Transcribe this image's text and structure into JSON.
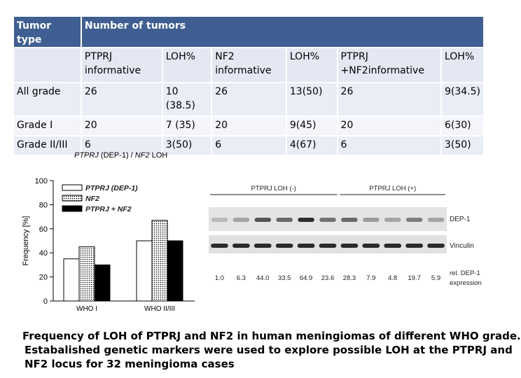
{
  "table": {
    "header": [
      "Tumor type",
      "Number of tumors"
    ],
    "subheaders": [
      "",
      "PTPRJ informative",
      "LOH%",
      "NF2 informative",
      "LOH%",
      "PTPRJ +NF2informative",
      "LOH%"
    ],
    "rows": [
      [
        "All grade",
        "26",
        "10 (38.5)",
        "26",
        "13(50)",
        "26",
        "9(34.5)"
      ],
      [
        "Grade I",
        "20",
        "7 (35)",
        "20",
        "9(45)",
        "20",
        "6(30)"
      ],
      [
        "Grade II/III",
        "6",
        "3(50)",
        "6",
        "4(67)",
        "6",
        "3(50)"
      ]
    ]
  },
  "panel_caption": {
    "gene1": "PTPRJ",
    "mid": " (DEP-1) / ",
    "gene2": "NF2",
    "tail": " LOH"
  },
  "chart_data": {
    "type": "bar",
    "categories": [
      "WHO I",
      "WHO II/III"
    ],
    "series": [
      {
        "name": "PTPRJ (DEP-1)",
        "values": [
          35,
          50
        ],
        "fill": "#ffffff"
      },
      {
        "name": "NF2",
        "values": [
          45,
          67
        ],
        "fill": "dotted"
      },
      {
        "name": "PTPRJ + NF2",
        "values": [
          30,
          50
        ],
        "fill": "#000000"
      }
    ],
    "ylabel": "Frequency [%]",
    "ylim": [
      0,
      100
    ],
    "yticks": [
      "0",
      "20",
      "40",
      "60",
      "80",
      "100"
    ],
    "legend": "top-left"
  },
  "blot": {
    "group_labels": [
      "PTPRJ LOH (-)",
      "PTPRJ LOH (+)"
    ],
    "lane_values": [
      "1.0",
      "6.3",
      "44.0",
      "33.5",
      "64.9",
      "23.6",
      "28.3",
      "7.9",
      "4.8",
      "19.7",
      "5.9"
    ],
    "dep1_intensity": [
      0.2,
      0.3,
      0.7,
      0.6,
      0.9,
      0.55,
      0.6,
      0.35,
      0.3,
      0.5,
      0.3
    ],
    "row_labels": [
      "DEP-1",
      "Vinculin"
    ],
    "value_label_line1": "rel. DEP-1",
    "value_label_line2": "expression"
  },
  "caption": {
    "line1": "Frequency of LOH of PTPRJ and NF2 in human meningiomas of different WHO grade.",
    "line2": "Estabalished genetic markers were used to explore possible LOH at the PTPRJ and",
    "line3": "NF2 locus for 32 meningioma cases"
  }
}
